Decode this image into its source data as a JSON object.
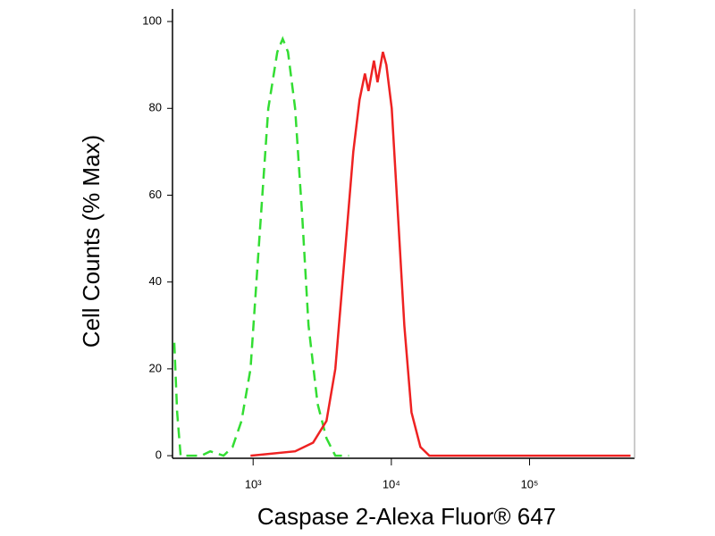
{
  "chart_data": {
    "type": "line",
    "xlabel": "Caspase 2-Alexa Fluor® 647",
    "ylabel": "Cell Counts (% Max)",
    "xscale": "log",
    "xlim": [
      261,
      575000
    ],
    "ylim": [
      -0.6,
      102.9
    ],
    "xticks": [
      {
        "value": 1000,
        "label": "10³"
      },
      {
        "value": 10000,
        "label": "10⁴"
      },
      {
        "value": 100000,
        "label": "10⁵"
      }
    ],
    "yticks": [
      0,
      20,
      40,
      60,
      80,
      100
    ],
    "series": [
      {
        "color": "#33dd33",
        "dashed": true,
        "x": [
          269,
          282,
          299,
          422,
          489,
          611,
          710,
          824,
          957,
          1110,
          1288,
          1496,
          1636,
          1788,
          2014,
          2269,
          2518,
          2924,
          3396,
          3936,
          4930
        ],
        "values": [
          26,
          10,
          0,
          0,
          1,
          0,
          2,
          8,
          20,
          50,
          80,
          93,
          96,
          93,
          80,
          55,
          30,
          12,
          4,
          0,
          0
        ]
      },
      {
        "color": "#ee2222",
        "dashed": false,
        "x": [
          957,
          2014,
          2716,
          3396,
          3936,
          4571,
          5308,
          5890,
          6441,
          6839,
          7480,
          7943,
          8683,
          9210,
          10070,
          11190,
          12420,
          13990,
          16230,
          18840,
          538000
        ],
        "values": [
          0,
          1,
          3,
          8,
          20,
          45,
          70,
          82,
          88,
          84,
          91,
          86,
          93,
          90,
          80,
          55,
          30,
          10,
          2,
          0,
          0
        ]
      }
    ]
  }
}
